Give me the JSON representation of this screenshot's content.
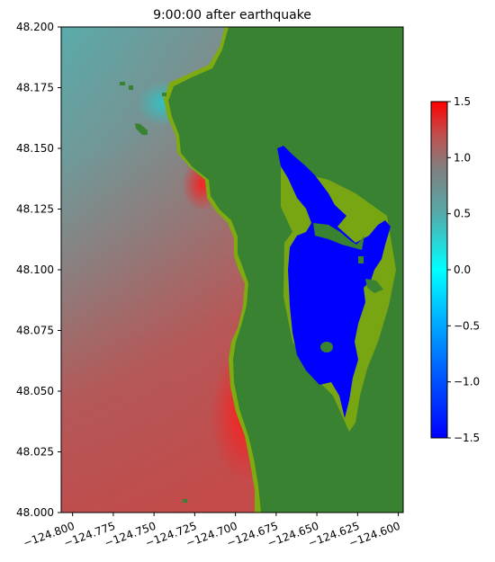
{
  "chart_data": {
    "type": "heatmap",
    "title": "9:00:00 after earthquake",
    "xlim": [
      -124.807,
      -124.597
    ],
    "ylim": [
      48.0,
      48.2
    ],
    "x_ticks": [
      -124.8,
      -124.775,
      -124.75,
      -124.725,
      -124.7,
      -124.675,
      -124.65,
      -124.625,
      -124.6
    ],
    "x_tick_labels": [
      "−124.800",
      "−124.775",
      "−124.750",
      "−124.725",
      "−124.700",
      "−124.675",
      "−124.650",
      "−124.625",
      "−124.600"
    ],
    "y_ticks": [
      48.0,
      48.025,
      48.05,
      48.075,
      48.1,
      48.125,
      48.15,
      48.175,
      48.2
    ],
    "y_tick_labels": [
      "48.000",
      "48.025",
      "48.050",
      "48.075",
      "48.100",
      "48.125",
      "48.150",
      "48.175",
      "48.200"
    ],
    "colorbar": {
      "range": [
        -1.5,
        1.5
      ],
      "ticks": [
        1.5,
        1.0,
        0.5,
        0.0,
        -0.5,
        -1.0,
        -1.5
      ],
      "tick_labels": [
        "1.5",
        "1.0",
        "0.5",
        "0.0",
        "−0.5",
        "−1.0",
        "−1.5"
      ],
      "colors": [
        {
          "value": -1.5,
          "color": "#0000ff"
        },
        {
          "value": -0.9,
          "color": "#0060ff"
        },
        {
          "value": 0.0,
          "color": "#00ffff"
        },
        {
          "value": 0.5,
          "color": "#55aaaa"
        },
        {
          "value": 0.9,
          "color": "#808080"
        },
        {
          "value": 1.2,
          "color": "#c05050"
        },
        {
          "value": 1.5,
          "color": "#ff0000"
        }
      ]
    },
    "colors": {
      "land": "#388232",
      "shallow": "#7faa10",
      "lake": "#0000ff",
      "frame": "#000000"
    }
  }
}
